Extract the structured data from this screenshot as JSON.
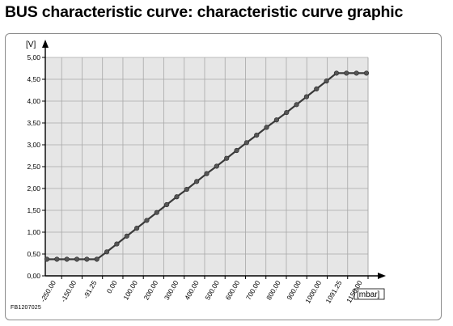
{
  "title": "BUS characteristic curve: characteristic curve graphic",
  "figure_id": "FB1207025",
  "colors": {
    "plot_background": "#e6e6e6",
    "grid": "#a8a8a8",
    "line": "#3a3a3a",
    "marker": "#555555"
  },
  "chart_data": {
    "type": "line",
    "title": "",
    "xlabel": "[mbar]",
    "ylabel": "[V]",
    "ylim": [
      0,
      5.0
    ],
    "y_ticks": [
      "0,00",
      "0,50",
      "1,00",
      "1,50",
      "2,00",
      "2,50",
      "3,00",
      "3,50",
      "4,00",
      "4,50",
      "5,00"
    ],
    "x_tick_labels": [
      "-250.00",
      "-150.00",
      "-91.25",
      "0.00",
      "100.00",
      "200.00",
      "300.00",
      "400.00",
      "500.00",
      "600.00",
      "700.00",
      "800.00",
      "900.00",
      "1000.00",
      "1091.25",
      "1150.00"
    ],
    "grid": true,
    "legend": "none",
    "series": [
      {
        "values": [
          0.38,
          0.38,
          0.38,
          0.38,
          0.38,
          0.38,
          0.55,
          0.73,
          0.91,
          1.09,
          1.27,
          1.45,
          1.63,
          1.81,
          1.98,
          2.16,
          2.34,
          2.51,
          2.69,
          2.87,
          3.05,
          3.22,
          3.4,
          3.57,
          3.74,
          3.92,
          4.1,
          4.28,
          4.46,
          4.64,
          4.64,
          4.64,
          4.64
        ]
      }
    ]
  }
}
